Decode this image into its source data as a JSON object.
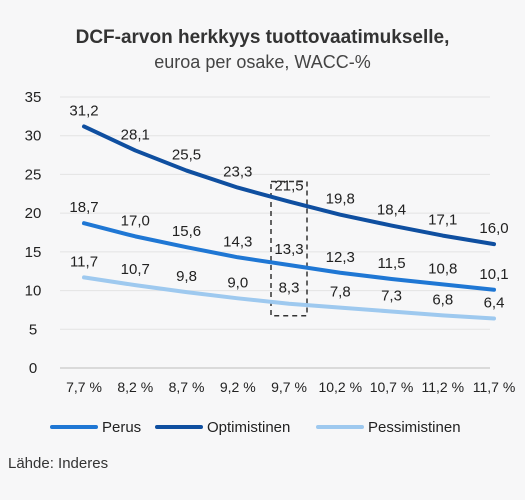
{
  "chart_data": {
    "type": "line",
    "title": "DCF-arvon herkkyys tuottovaatimukselle,",
    "subtitle": "euroa per osake, WACC-%",
    "categories": [
      "7,7 %",
      "8,2 %",
      "8,7 %",
      "9,2 %",
      "9,7 %",
      "10,2 %",
      "10,7 %",
      "11,2 %",
      "11,7 %"
    ],
    "series": [
      {
        "name": "Perus",
        "values": [
          18.7,
          17.0,
          15.6,
          14.3,
          13.3,
          12.3,
          11.5,
          10.8,
          10.1
        ],
        "labels": [
          "18,7",
          "17,0",
          "15,6",
          "14,3",
          "13,3",
          "12,3",
          "11,5",
          "10,8",
          "10,1"
        ],
        "color": "#1f77d4"
      },
      {
        "name": "Optimistinen",
        "values": [
          31.2,
          28.1,
          25.5,
          23.3,
          21.5,
          19.8,
          18.4,
          17.1,
          16.0
        ],
        "labels": [
          "31,2",
          "28,1",
          "25,5",
          "23,3",
          "21,5",
          "19,8",
          "18,4",
          "17,1",
          "16,0"
        ],
        "color": "#0f4fa0"
      },
      {
        "name": "Pessimistinen",
        "values": [
          11.7,
          10.7,
          9.8,
          9.0,
          8.3,
          7.8,
          7.3,
          6.8,
          6.4
        ],
        "labels": [
          "11,7",
          "10,7",
          "9,8",
          "9,0",
          "8,3",
          "7,8",
          "7,3",
          "6,8",
          "6,4"
        ],
        "color": "#9ec9ef"
      }
    ],
    "yticks": [
      "0",
      "5",
      "10",
      "15",
      "20",
      "25",
      "30",
      "35"
    ],
    "ylim": [
      0,
      35
    ],
    "grid": true,
    "highlight_category": "9,7 %",
    "legend_position": "bottom"
  },
  "source": "Lähde: Inderes"
}
